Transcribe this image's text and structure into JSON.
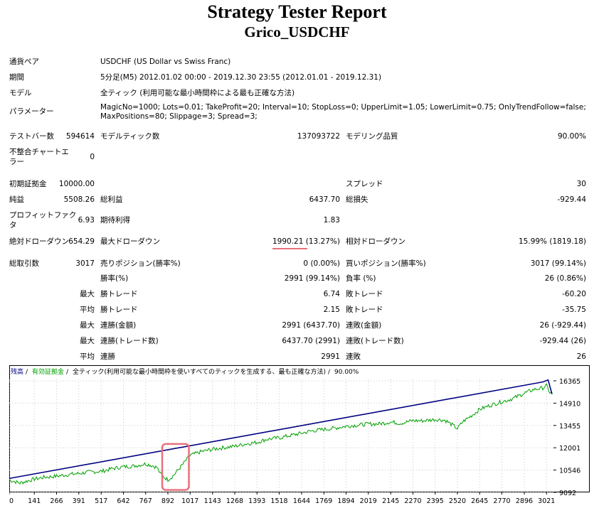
{
  "report": {
    "title": "Strategy Tester Report",
    "subtitle": "Grico_USDCHF"
  },
  "info": {
    "symbol_label": "通貨ペア",
    "symbol_value": "USDCHF (US Dollar vs Swiss Franc)",
    "period_label": "期間",
    "period_value": "5分足(M5) 2012.01.02 00:00 - 2019.12.30 23:55 (2012.01.01 - 2019.12.31)",
    "model_label": "モデル",
    "model_value": "全ティック (利用可能な最小時間枠による最も正確な方法)",
    "params_label": "パラメーター",
    "params_line1": "MagicNo=1000; Lots=0.01; TakeProfit=20; Interval=10; StopLoss=0; UpperLimit=1.05; LowerLimit=0.75; OnlyTrendFollow=false;",
    "params_line2": "MaxPositions=80; Slippage=3; Spread=3;"
  },
  "stats": {
    "bars_label": "テストバー数",
    "bars_value": "594614",
    "ticks_label": "モデルティック数",
    "ticks_value": "137093722",
    "quality_label": "モデリング品質",
    "quality_value": "90.00%",
    "mismatch_label_1": "不整合チャートエ",
    "mismatch_label_2": "ラー",
    "mismatch_value": "0",
    "deposit_label": "初期証拠金",
    "deposit_value": "10000.00",
    "spread_label": "スプレッド",
    "spread_value": "30",
    "net_label": "純益",
    "net_value": "5508.26",
    "gross_profit_label": "総利益",
    "gross_profit_value": "6437.70",
    "gross_loss_label": "総損失",
    "gross_loss_value": "-929.44",
    "pf_label_1": "プロフィットファク",
    "pf_label_2": "タ",
    "pf_value": "6.93",
    "expected_label": "期待利得",
    "expected_value": "1.83",
    "abs_dd_label": "絶対ドローダウン",
    "abs_dd_value": "654.29",
    "max_dd_label": "最大ドローダウン",
    "max_dd_value": "1990.21 (13.27%)",
    "rel_dd_label": "相対ドローダウン",
    "rel_dd_value": "15.99% (1819.18)",
    "total_trades_label": "総取引数",
    "total_trades_value": "3017",
    "short_label": "売りポジション(勝率%)",
    "short_value": "0 (0.00%)",
    "long_label": "買いポジション(勝率%)",
    "long_value": "3017 (99.14%)",
    "win_rate_label": "勝率(%)",
    "win_rate_value": "2991 (99.14%)",
    "loss_rate_label": "負率 (%)",
    "loss_rate_value": "26 (0.86%)",
    "max_label": "最大",
    "avg_label": "平均",
    "largest_win_label": "勝トレード",
    "largest_win_value": "6.74",
    "largest_loss_label": "敗トレード",
    "largest_loss_value": "-60.20",
    "avg_win_label": "勝トレード",
    "avg_win_value": "2.15",
    "avg_loss_label": "敗トレード",
    "avg_loss_value": "-35.75",
    "max_cons_win_money_label": "連勝(金額)",
    "max_cons_win_money_value": "2991 (6437.70)",
    "max_cons_loss_money_label": "連敗(金額)",
    "max_cons_loss_money_value": "26 (-929.44)",
    "max_cons_win_count_label": "連勝(トレード数)",
    "max_cons_win_count_value": "6437.70 (2991)",
    "max_cons_loss_count_label": "連敗(トレード数)",
    "max_cons_loss_count_value": "-929.44 (26)",
    "avg_cons_win_label": "連勝",
    "avg_cons_win_value": "2991",
    "avg_cons_loss_label": "連敗",
    "avg_cons_loss_value": "26"
  },
  "chart_data": {
    "type": "line",
    "legend": [
      {
        "text": "残高",
        "color": "#000080"
      },
      {
        "text": "有効証拠金",
        "color": "#00a000"
      },
      {
        "text": "全ティック(利用可能な最小時間枠を使いすべてのティックを生成する、最も正確な方法)",
        "color": "#000000"
      },
      {
        "text": "90.00%",
        "color": "#000000"
      }
    ],
    "x_ticks": [
      "0",
      "141",
      "266",
      "391",
      "517",
      "642",
      "767",
      "892",
      "1017",
      "1143",
      "1268",
      "1393",
      "1518",
      "1644",
      "1769",
      "1894",
      "2019",
      "2145",
      "2270",
      "2395",
      "2520",
      "2645",
      "2770",
      "2896",
      "3021"
    ],
    "y_ticks": [
      "16365",
      "14910",
      "13455",
      "12001",
      "10546",
      "9092"
    ],
    "ylim": [
      9092,
      16365
    ],
    "xlim": [
      0,
      3060
    ],
    "balance": {
      "name": "残高",
      "color": "#000080",
      "x": [
        0,
        3000,
        3030,
        3040,
        3052
      ],
      "y": [
        10000,
        16290,
        16420,
        16000,
        15508
      ]
    },
    "equity": {
      "name": "有効証拠金",
      "color": "#00a000",
      "x": [
        0,
        60,
        141,
        200,
        266,
        330,
        391,
        450,
        517,
        580,
        642,
        700,
        767,
        800,
        830,
        850,
        870,
        892,
        920,
        960,
        1017,
        1080,
        1143,
        1200,
        1268,
        1330,
        1393,
        1450,
        1518,
        1580,
        1644,
        1700,
        1769,
        1830,
        1894,
        1960,
        2019,
        2080,
        2145,
        2200,
        2270,
        2330,
        2395,
        2450,
        2490,
        2520,
        2550,
        2600,
        2645,
        2700,
        2770,
        2830,
        2896,
        2950,
        3000,
        3021,
        3040,
        3052
      ],
      "y": [
        9900,
        9700,
        9960,
        10080,
        10150,
        10250,
        10320,
        10420,
        10460,
        10640,
        10760,
        10810,
        10950,
        10860,
        10720,
        10300,
        10090,
        9920,
        10150,
        10700,
        11500,
        11750,
        11900,
        12000,
        12100,
        12250,
        12350,
        12560,
        12650,
        12800,
        12950,
        13100,
        13200,
        13280,
        13400,
        13480,
        13550,
        13560,
        13680,
        13600,
        13770,
        13760,
        13850,
        13800,
        13500,
        13250,
        13700,
        14100,
        14500,
        14750,
        15000,
        15200,
        15550,
        15800,
        15900,
        16050,
        15600,
        15500
      ]
    },
    "highlight_box": {
      "x_range": [
        860,
        1010
      ],
      "y_range": [
        9250,
        12250
      ]
    }
  }
}
